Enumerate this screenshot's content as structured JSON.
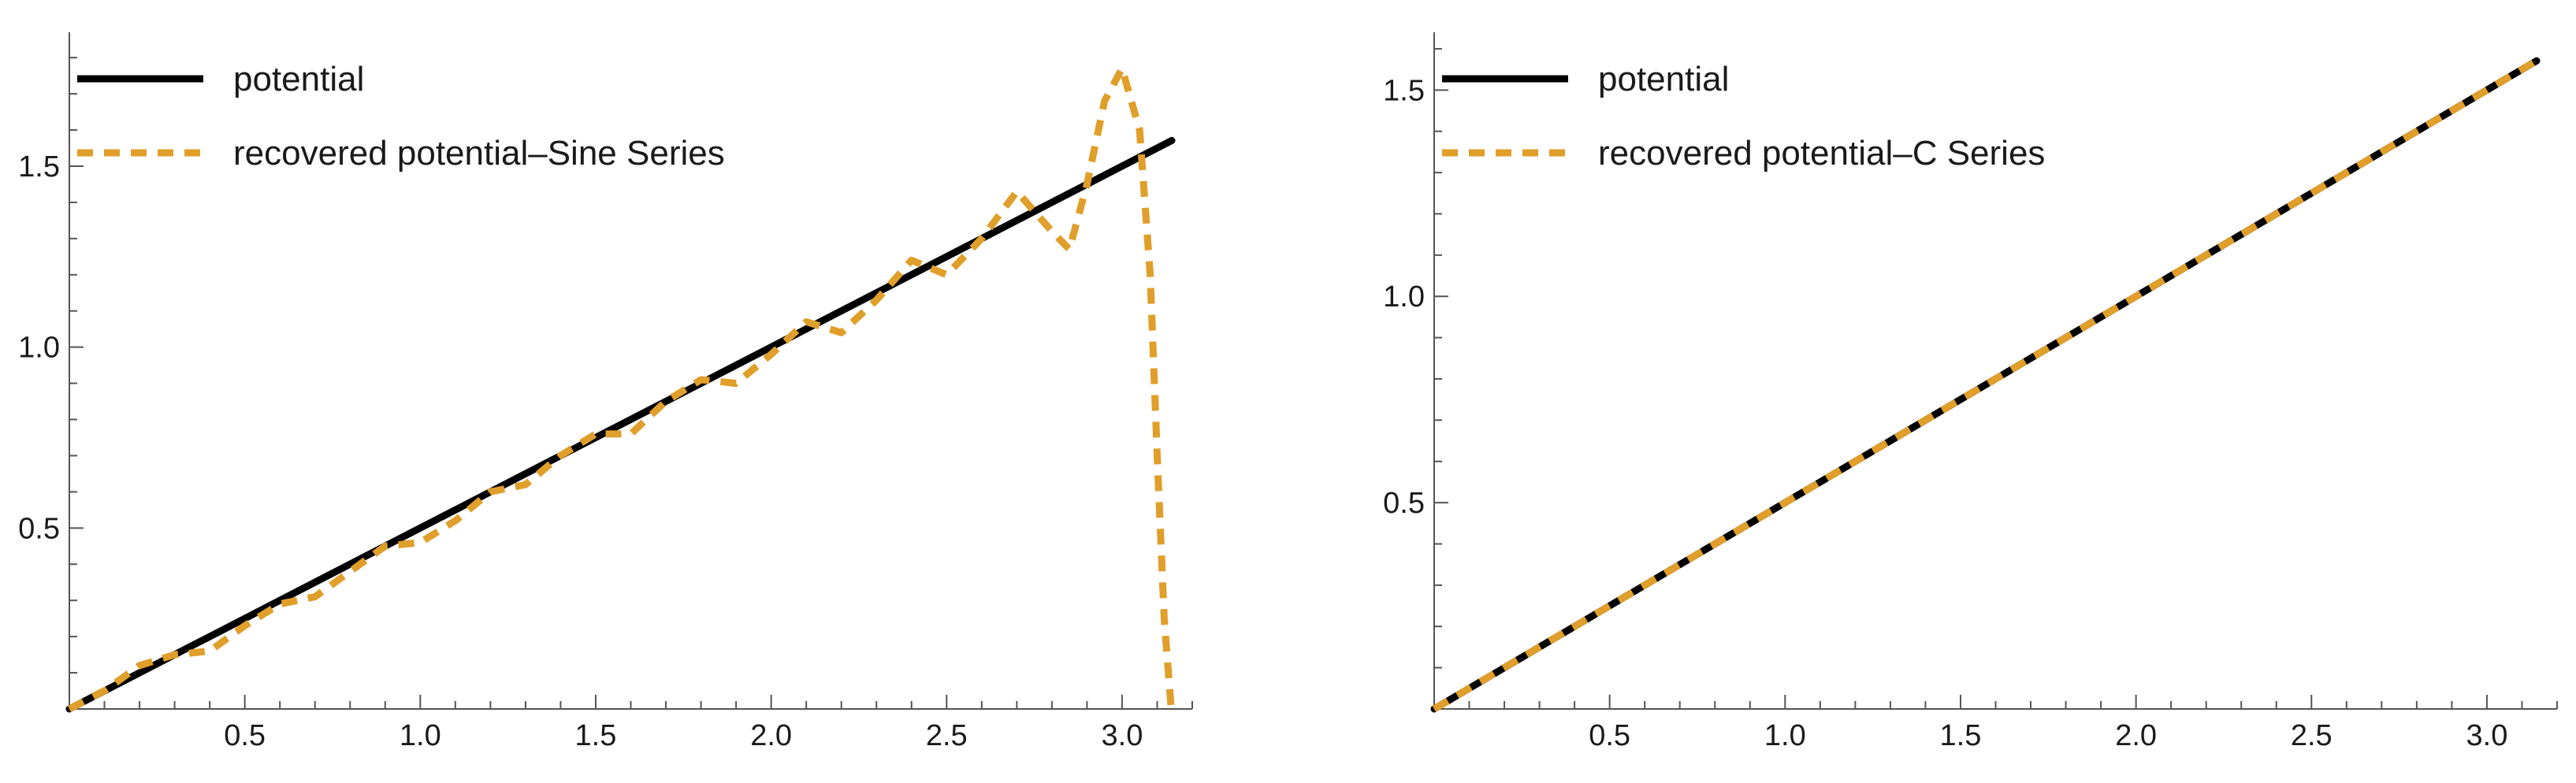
{
  "chart_data": [
    {
      "type": "line",
      "title": "",
      "xlabel": "",
      "ylabel": "",
      "xlim": [
        0,
        3.2
      ],
      "ylim": [
        0,
        1.87
      ],
      "xticks": [
        "0.5",
        "1.0",
        "1.5",
        "2.0",
        "2.5",
        "3.0"
      ],
      "yticks": [
        "0.5",
        "1.0",
        "1.5"
      ],
      "grid": false,
      "legend": "top-left",
      "series": [
        {
          "name": "potential",
          "color": "#000000",
          "style": "solid",
          "x": [
            0,
            3.14159
          ],
          "y": [
            0,
            1.5708
          ]
        },
        {
          "name": "recovered potential–Sine Series",
          "color": "#e09e2a",
          "style": "dashed",
          "x": [
            0,
            0.1,
            0.2,
            0.3,
            0.4,
            0.5,
            0.6,
            0.7,
            0.8,
            0.9,
            1.0,
            1.1,
            1.2,
            1.3,
            1.4,
            1.5,
            1.6,
            1.7,
            1.8,
            1.9,
            2.0,
            2.1,
            2.2,
            2.3,
            2.4,
            2.5,
            2.6,
            2.7,
            2.8,
            2.85,
            2.9,
            2.95,
            3.0,
            3.05,
            3.08,
            3.1,
            3.12,
            3.14
          ],
          "y": [
            0,
            0.05,
            0.12,
            0.15,
            0.16,
            0.23,
            0.29,
            0.31,
            0.38,
            0.45,
            0.46,
            0.52,
            0.6,
            0.62,
            0.7,
            0.76,
            0.76,
            0.85,
            0.91,
            0.9,
            0.98,
            1.07,
            1.04,
            1.13,
            1.24,
            1.2,
            1.3,
            1.43,
            1.32,
            1.27,
            1.45,
            1.68,
            1.77,
            1.6,
            1.2,
            0.7,
            0.25,
            0
          ]
        }
      ]
    },
    {
      "type": "line",
      "title": "",
      "xlabel": "",
      "ylabel": "",
      "xlim": [
        0,
        3.2
      ],
      "ylim": [
        0,
        1.64
      ],
      "xticks": [
        "0.5",
        "1.0",
        "1.5",
        "2.0",
        "2.5",
        "3.0"
      ],
      "yticks": [
        "0.5",
        "1.0",
        "1.5"
      ],
      "grid": false,
      "legend": "top-left",
      "series": [
        {
          "name": "potential",
          "color": "#000000",
          "style": "solid",
          "x": [
            0,
            3.14159
          ],
          "y": [
            0,
            1.5708
          ]
        },
        {
          "name": "recovered potential–C Series",
          "color": "#e09e2a",
          "style": "dashed",
          "x": [
            0,
            3.14159
          ],
          "y": [
            0,
            1.5708
          ]
        }
      ]
    }
  ]
}
